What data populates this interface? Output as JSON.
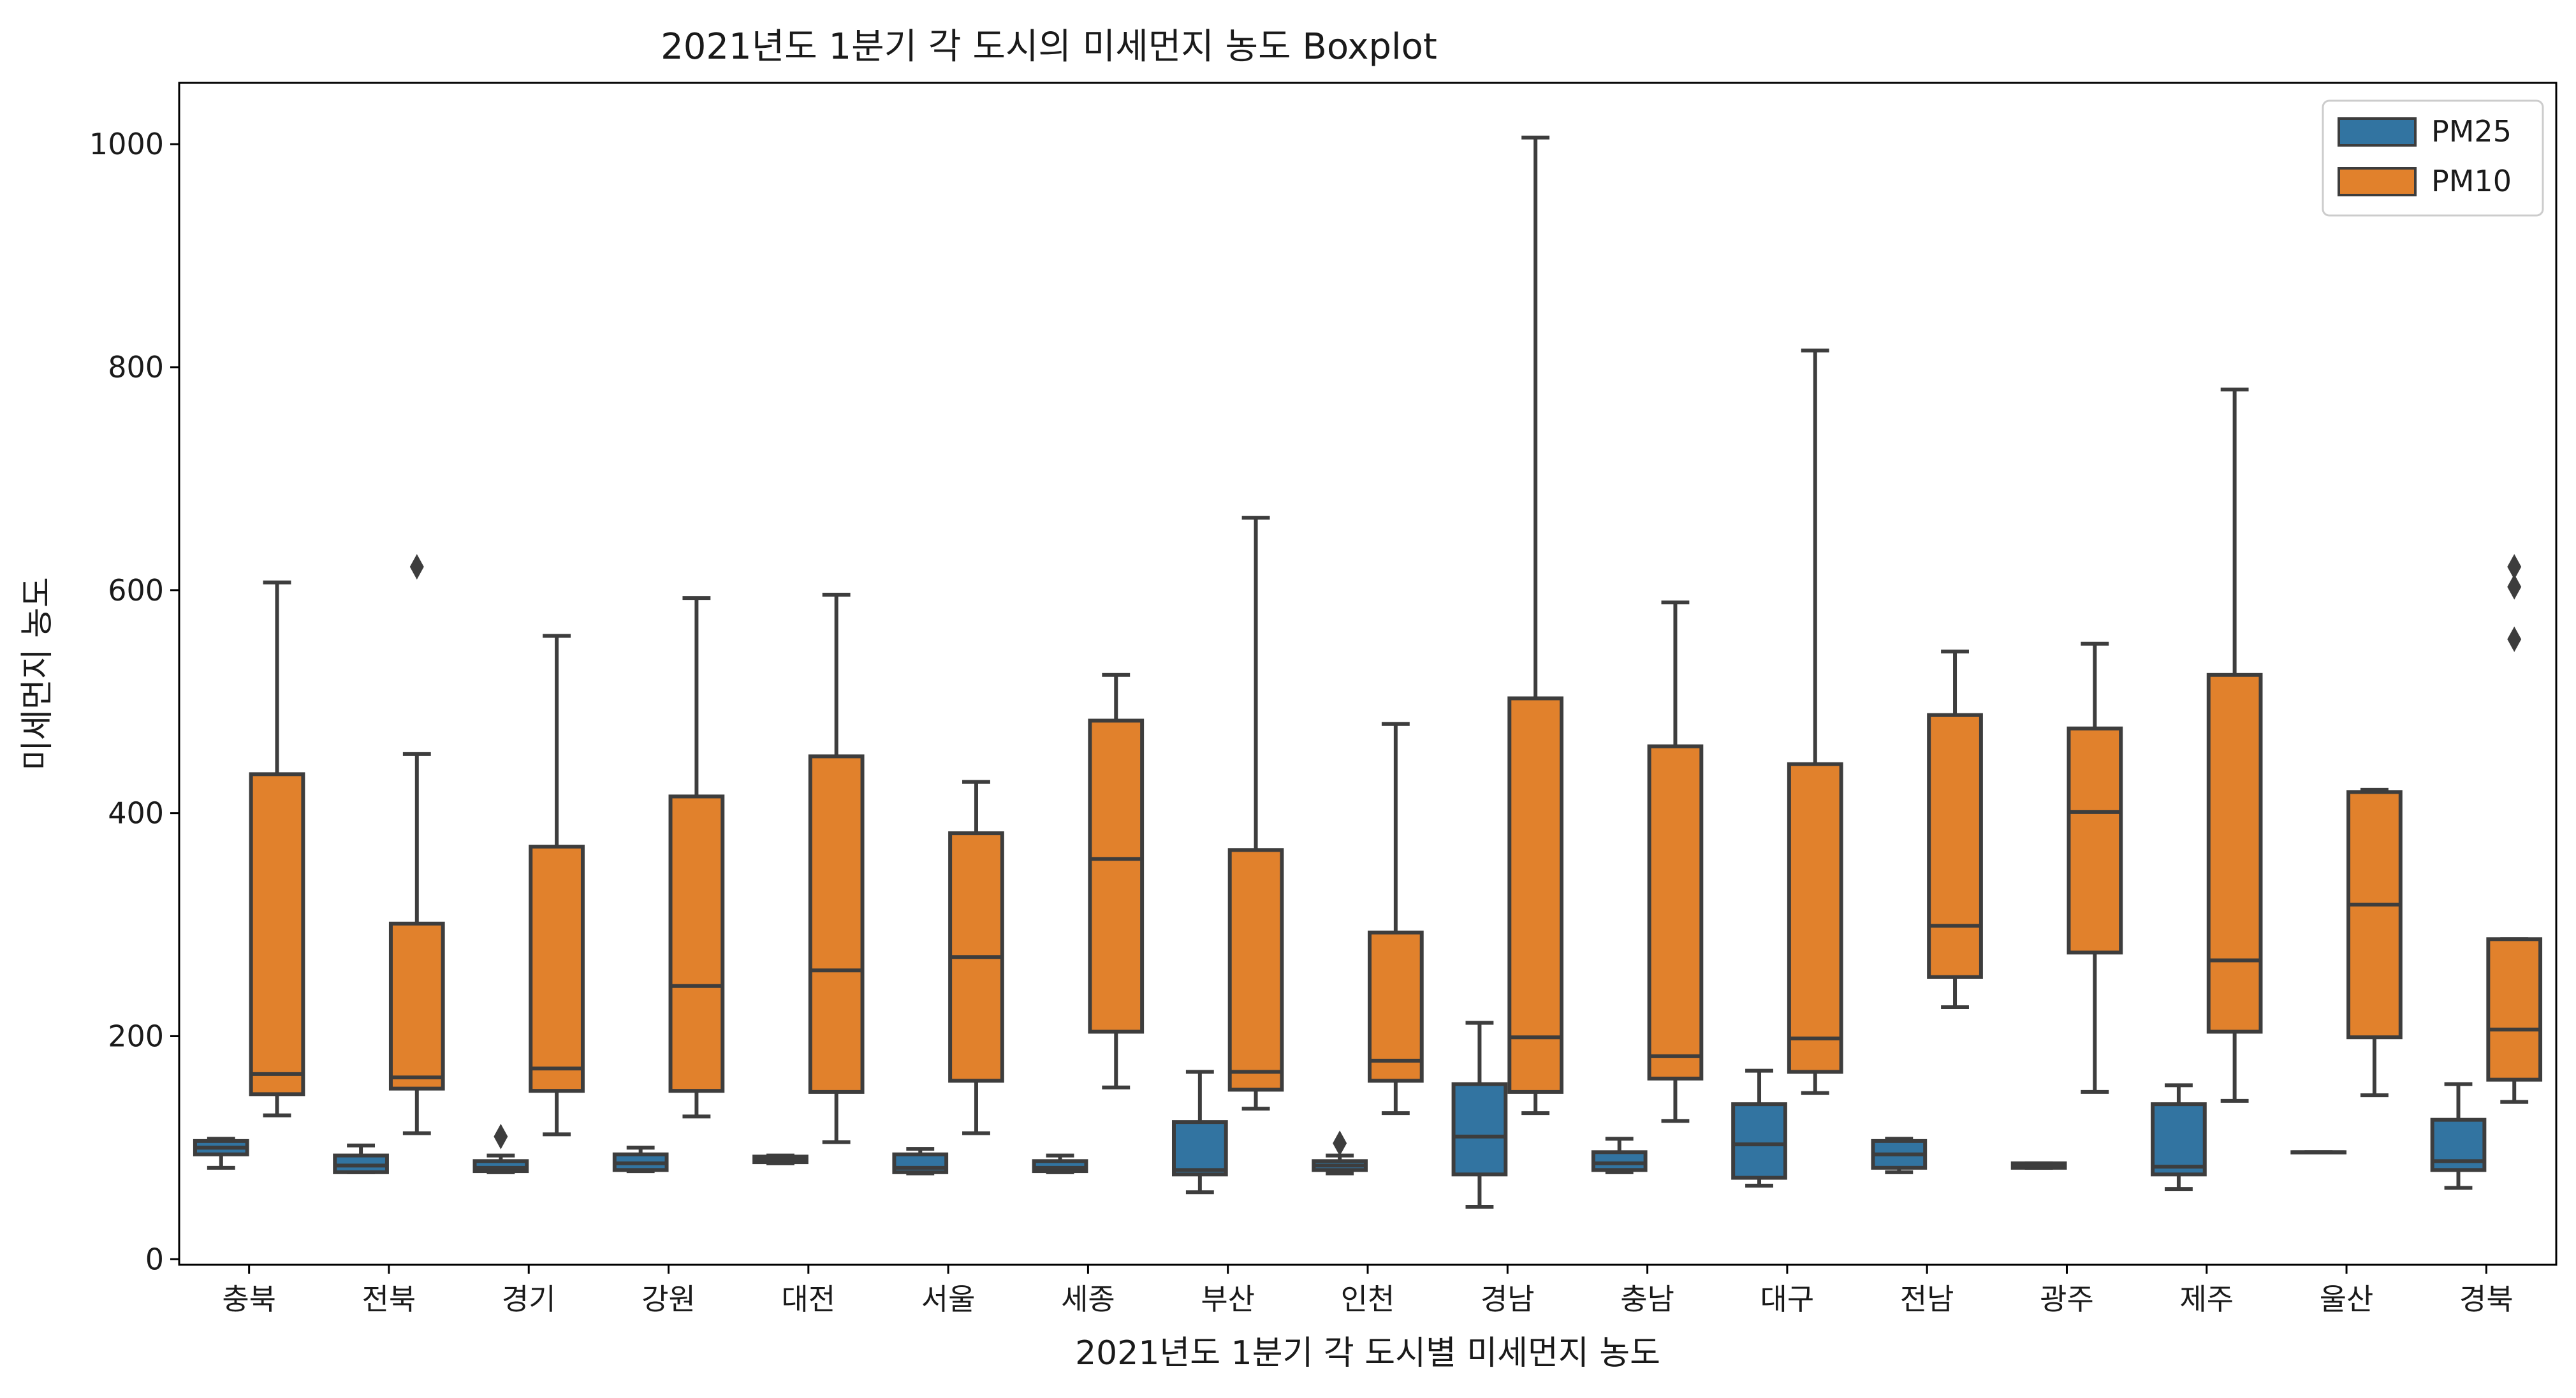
{
  "chart_data": {
    "type": "boxplot",
    "title": "2021년도 1분기 각 도시의 미세먼지 농도 Boxplot",
    "xlabel": "2021년도 1분기 각 도시별 미세먼지 농도",
    "ylabel": "미세먼지 농도",
    "ylim": [
      -5,
      1055
    ],
    "yticks": [
      0,
      200,
      400,
      600,
      800,
      1000
    ],
    "grid": false,
    "legend_position": "top-right",
    "categories": [
      "충북",
      "전북",
      "경기",
      "강원",
      "대전",
      "서울",
      "세종",
      "부산",
      "인천",
      "경남",
      "충남",
      "대구",
      "전남",
      "광주",
      "제주",
      "울산",
      "경북"
    ],
    "series": [
      {
        "name": "PM25",
        "color": "#3274a1",
        "boxes": [
          {
            "whislo": 82,
            "q1": 94,
            "med": 100,
            "q3": 106,
            "whishi": 108,
            "fliers": []
          },
          {
            "whislo": 78,
            "q1": 78,
            "med": 84,
            "q3": 93,
            "whishi": 102,
            "fliers": []
          },
          {
            "whislo": 78,
            "q1": 79,
            "med": 82,
            "q3": 88,
            "whishi": 93,
            "fliers": [
              110
            ]
          },
          {
            "whislo": 79,
            "q1": 80,
            "med": 86,
            "q3": 94,
            "whishi": 100,
            "fliers": []
          },
          {
            "whislo": 86,
            "q1": 87,
            "med": 89,
            "q3": 92,
            "whishi": 93,
            "fliers": []
          },
          {
            "whislo": 77,
            "q1": 78,
            "med": 82,
            "q3": 94,
            "whishi": 99,
            "fliers": []
          },
          {
            "whislo": 78,
            "q1": 79,
            "med": 82,
            "q3": 88,
            "whishi": 93,
            "fliers": []
          },
          {
            "whislo": 60,
            "q1": 76,
            "med": 80,
            "q3": 123,
            "whishi": 168,
            "fliers": []
          },
          {
            "whislo": 77,
            "q1": 80,
            "med": 84,
            "q3": 88,
            "whishi": 93,
            "fliers": [
              104
            ]
          },
          {
            "whislo": 47,
            "q1": 76,
            "med": 110,
            "q3": 157,
            "whishi": 212,
            "fliers": []
          },
          {
            "whislo": 78,
            "q1": 80,
            "med": 86,
            "q3": 96,
            "whishi": 108,
            "fliers": []
          },
          {
            "whislo": 66,
            "q1": 73,
            "med": 103,
            "q3": 139,
            "whishi": 169,
            "fliers": []
          },
          {
            "whislo": 78,
            "q1": 82,
            "med": 94,
            "q3": 106,
            "whishi": 108,
            "fliers": []
          },
          {
            "whislo": 82,
            "q1": 82,
            "med": 84,
            "q3": 86,
            "whishi": 86,
            "fliers": []
          },
          {
            "whislo": 63,
            "q1": 76,
            "med": 83,
            "q3": 139,
            "whishi": 156,
            "fliers": []
          },
          {
            "whislo": 96,
            "q1": 96,
            "med": 96,
            "q3": 96,
            "whishi": 96,
            "fliers": []
          },
          {
            "whislo": 64,
            "q1": 80,
            "med": 88,
            "q3": 125,
            "whishi": 157,
            "fliers": []
          }
        ]
      },
      {
        "name": "PM10",
        "color": "#e1812c",
        "boxes": [
          {
            "whislo": 129,
            "q1": 148,
            "med": 166,
            "q3": 435,
            "whishi": 607,
            "fliers": []
          },
          {
            "whislo": 113,
            "q1": 153,
            "med": 163,
            "q3": 301,
            "whishi": 453,
            "fliers": [
              621
            ]
          },
          {
            "whislo": 112,
            "q1": 151,
            "med": 171,
            "q3": 370,
            "whishi": 559,
            "fliers": []
          },
          {
            "whislo": 128,
            "q1": 151,
            "med": 245,
            "q3": 415,
            "whishi": 593,
            "fliers": []
          },
          {
            "whislo": 105,
            "q1": 150,
            "med": 259,
            "q3": 451,
            "whishi": 596,
            "fliers": []
          },
          {
            "whislo": 113,
            "q1": 160,
            "med": 271,
            "q3": 382,
            "whishi": 428,
            "fliers": []
          },
          {
            "whislo": 154,
            "q1": 204,
            "med": 359,
            "q3": 483,
            "whishi": 524,
            "fliers": []
          },
          {
            "whislo": 135,
            "q1": 152,
            "med": 168,
            "q3": 367,
            "whishi": 665,
            "fliers": []
          },
          {
            "whislo": 131,
            "q1": 160,
            "med": 178,
            "q3": 293,
            "whishi": 480,
            "fliers": []
          },
          {
            "whislo": 131,
            "q1": 150,
            "med": 199,
            "q3": 503,
            "whishi": 1006,
            "fliers": []
          },
          {
            "whislo": 124,
            "q1": 162,
            "med": 182,
            "q3": 460,
            "whishi": 589,
            "fliers": []
          },
          {
            "whislo": 149,
            "q1": 168,
            "med": 198,
            "q3": 444,
            "whishi": 815,
            "fliers": []
          },
          {
            "whislo": 226,
            "q1": 253,
            "med": 299,
            "q3": 488,
            "whishi": 545,
            "fliers": []
          },
          {
            "whislo": 150,
            "q1": 275,
            "med": 401,
            "q3": 476,
            "whishi": 552,
            "fliers": []
          },
          {
            "whislo": 142,
            "q1": 204,
            "med": 268,
            "q3": 524,
            "whishi": 780,
            "fliers": []
          },
          {
            "whislo": 147,
            "q1": 199,
            "med": 318,
            "q3": 419,
            "whishi": 421,
            "fliers": []
          },
          {
            "whislo": 141,
            "q1": 161,
            "med": 206,
            "q3": 287,
            "whishi": 287,
            "fliers": [
              556,
              603,
              621
            ]
          }
        ]
      }
    ]
  }
}
